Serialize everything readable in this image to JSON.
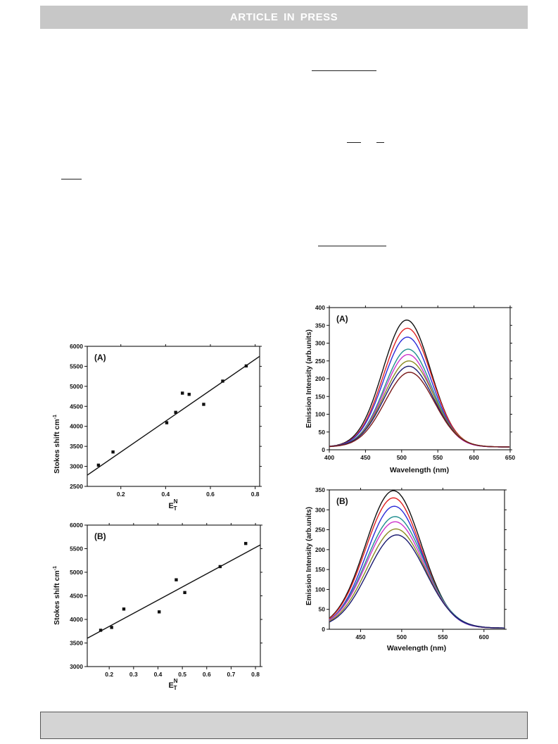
{
  "header": {
    "banner_text": "ARTICLE IN PRESS"
  },
  "chart_data": [
    {
      "id": "left_a",
      "type": "scatter",
      "panel_label": "(A)",
      "xlabel": "E",
      "xlabel_sup": "N",
      "xlabel_sub": "T",
      "ylabel": "Stokes shift cm",
      "ylabel_sup": "-1",
      "xlim": [
        0.05,
        0.82
      ],
      "ylim": [
        2500,
        6000
      ],
      "xticks": [
        0.2,
        0.4,
        0.6,
        0.8
      ],
      "xtick_labels": [
        "0.2",
        "0.4",
        "0.6",
        "0.8"
      ],
      "yticks": [
        2500,
        3000,
        3500,
        4000,
        4500,
        5000,
        5500,
        6000
      ],
      "ytick_labels": [
        "2500",
        "3000",
        "3500",
        "4000",
        "4500",
        "5000",
        "5500",
        "6000"
      ],
      "points": [
        [
          0.1,
          3030
        ],
        [
          0.165,
          3360
        ],
        [
          0.405,
          4090
        ],
        [
          0.445,
          4350
        ],
        [
          0.475,
          4830
        ],
        [
          0.505,
          4800
        ],
        [
          0.57,
          4550
        ],
        [
          0.655,
          5130
        ],
        [
          0.76,
          5510
        ]
      ],
      "fit_line": [
        [
          0.05,
          2780
        ],
        [
          0.82,
          5750
        ]
      ]
    },
    {
      "id": "left_b",
      "type": "scatter",
      "panel_label": "(B)",
      "xlabel": "E",
      "xlabel_sup": "N",
      "xlabel_sub": "T",
      "ylabel": "Stokes shift cm",
      "ylabel_sup": "-1",
      "xlim": [
        0.11,
        0.82
      ],
      "ylim": [
        3000,
        6000
      ],
      "xticks": [
        0.2,
        0.3,
        0.4,
        0.5,
        0.6,
        0.7,
        0.8
      ],
      "xtick_labels": [
        "0.2",
        "0.3",
        "0.4",
        "0.5",
        "0.6",
        "0.7",
        "0.8"
      ],
      "yticks": [
        3000,
        3500,
        4000,
        4500,
        5000,
        5500,
        6000
      ],
      "ytick_labels": [
        "3000",
        "3500",
        "4000",
        "4500",
        "5000",
        "5500",
        "6000"
      ],
      "points": [
        [
          0.165,
          3770
        ],
        [
          0.21,
          3830
        ],
        [
          0.26,
          4220
        ],
        [
          0.405,
          4160
        ],
        [
          0.475,
          4840
        ],
        [
          0.51,
          4570
        ],
        [
          0.655,
          5120
        ],
        [
          0.76,
          5610
        ]
      ],
      "fit_line": [
        [
          0.11,
          3600
        ],
        [
          0.82,
          5580
        ]
      ]
    },
    {
      "id": "right_a",
      "type": "line",
      "panel_label": "(A)",
      "xlabel": "Wavelength (nm)",
      "ylabel": "Emission Intensity (arb.units)",
      "xlim": [
        400,
        650
      ],
      "ylim": [
        0,
        400
      ],
      "xticks": [
        400,
        450,
        500,
        550,
        600,
        650
      ],
      "xtick_labels": [
        "400",
        "450",
        "500",
        "550",
        "600",
        "650"
      ],
      "yticks": [
        0,
        50,
        100,
        150,
        200,
        250,
        300,
        350,
        400
      ],
      "ytick_labels": [
        "0",
        "50",
        "100",
        "150",
        "200",
        "250",
        "300",
        "350",
        "400"
      ],
      "series": [
        {
          "color": "#111111",
          "peak": 365,
          "peak_x": 507,
          "sigma": 33,
          "base": 8
        },
        {
          "color": "#e02020",
          "peak": 342,
          "peak_x": 508,
          "sigma": 33,
          "base": 8
        },
        {
          "color": "#2b2bd8",
          "peak": 317,
          "peak_x": 508,
          "sigma": 33,
          "base": 8
        },
        {
          "color": "#1f8f8f",
          "peak": 283,
          "peak_x": 509,
          "sigma": 33,
          "base": 8
        },
        {
          "color": "#cc33cc",
          "peak": 268,
          "peak_x": 509,
          "sigma": 33,
          "base": 8
        },
        {
          "color": "#8b8b22",
          "peak": 250,
          "peak_x": 510,
          "sigma": 34,
          "base": 8
        },
        {
          "color": "#1a1a70",
          "peak": 235,
          "peak_x": 510,
          "sigma": 34,
          "base": 8
        },
        {
          "color": "#7a1a1a",
          "peak": 218,
          "peak_x": 511,
          "sigma": 34,
          "base": 8
        }
      ]
    },
    {
      "id": "right_b",
      "type": "line",
      "panel_label": "(B)",
      "xlabel": "Wavelength (nm)",
      "ylabel": "Emission Intensity (arb.units)",
      "xlim": [
        412,
        625
      ],
      "ylim": [
        0,
        350
      ],
      "xticks": [
        450,
        500,
        550,
        600
      ],
      "xtick_labels": [
        "450",
        "500",
        "550",
        "600"
      ],
      "yticks": [
        0,
        50,
        100,
        150,
        200,
        250,
        300,
        350
      ],
      "ytick_labels": [
        "0",
        "50",
        "100",
        "150",
        "200",
        "250",
        "300",
        "350"
      ],
      "series": [
        {
          "color": "#111111",
          "peak": 348,
          "peak_x": 490,
          "sigma": 34,
          "base": 3
        },
        {
          "color": "#e02020",
          "peak": 330,
          "peak_x": 490,
          "sigma": 34,
          "base": 3
        },
        {
          "color": "#2b2bd8",
          "peak": 309,
          "peak_x": 491,
          "sigma": 34,
          "base": 3
        },
        {
          "color": "#1f8f8f",
          "peak": 283,
          "peak_x": 492,
          "sigma": 35,
          "base": 3
        },
        {
          "color": "#cc33cc",
          "peak": 270,
          "peak_x": 492,
          "sigma": 35,
          "base": 3
        },
        {
          "color": "#8b8b22",
          "peak": 252,
          "peak_x": 493,
          "sigma": 35,
          "base": 3
        },
        {
          "color": "#1a1a70",
          "peak": 237,
          "peak_x": 494,
          "sigma": 35,
          "base": 3
        }
      ]
    }
  ]
}
